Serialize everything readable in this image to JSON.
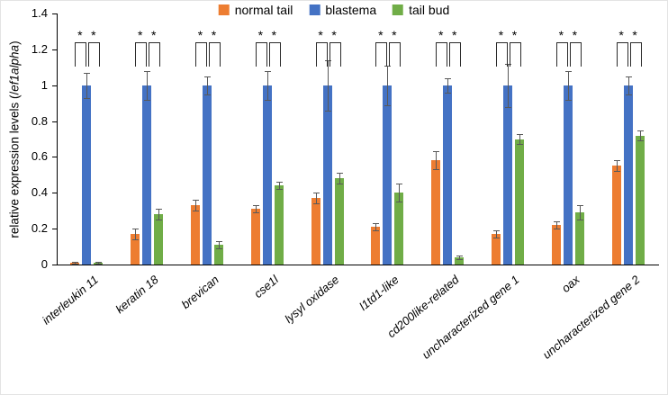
{
  "chart_data": {
    "type": "bar",
    "title": "",
    "ylabel": {
      "prefix": "relative expression levels (/",
      "gene": "ef1alpha",
      "suffix": ")"
    },
    "xlabel": "",
    "ylim": [
      0,
      1.4
    ],
    "yticks": [
      0,
      0.2,
      0.4,
      0.6,
      0.8,
      1,
      1.2,
      1.4
    ],
    "grid": "off",
    "legend_position": "top-center",
    "categories": [
      "interleukin 11",
      "keratin 18",
      "brevican",
      "cse1l",
      "lysyl oxidase",
      "l1td1-like",
      "cd200like-related",
      "uncharacterized gene 1",
      "oax",
      "uncharacterized gene 2"
    ],
    "series": [
      {
        "name": "normal tail",
        "color": "#ED7D31",
        "values": [
          0.01,
          0.17,
          0.33,
          0.31,
          0.37,
          0.21,
          0.58,
          0.17,
          0.22,
          0.55
        ],
        "errors": [
          0.005,
          0.03,
          0.03,
          0.02,
          0.03,
          0.02,
          0.05,
          0.02,
          0.02,
          0.03
        ]
      },
      {
        "name": "blastema",
        "color": "#4472C4",
        "values": [
          1,
          1,
          1,
          1,
          1,
          1,
          1,
          1,
          1,
          1
        ],
        "errors": [
          0.07,
          0.08,
          0.05,
          0.08,
          0.14,
          0.11,
          0.04,
          0.12,
          0.08,
          0.05
        ]
      },
      {
        "name": "tail bud",
        "color": "#70AD47",
        "values": [
          0.01,
          0.28,
          0.11,
          0.44,
          0.48,
          0.4,
          0.04,
          0.7,
          0.29,
          0.72
        ],
        "errors": [
          0.005,
          0.03,
          0.02,
          0.02,
          0.03,
          0.05,
          0.01,
          0.03,
          0.04,
          0.03
        ]
      }
    ],
    "significance": {
      "marker": "*",
      "comparisons_per_group": [
        [
          "normal tail",
          "blastema"
        ],
        [
          "blastema",
          "tail bud"
        ]
      ],
      "groups_with_brackets": "all"
    }
  }
}
